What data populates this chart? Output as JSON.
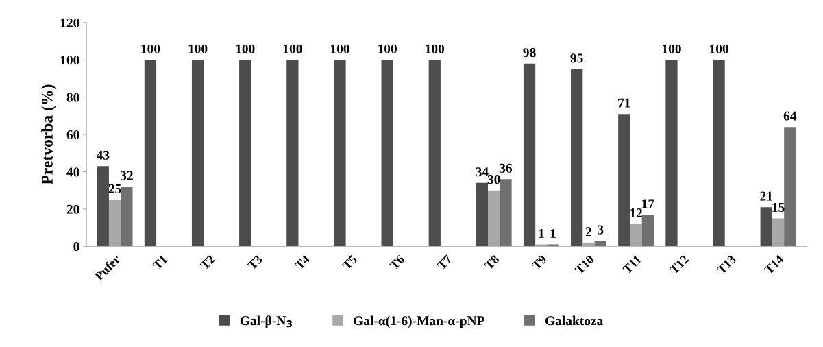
{
  "chart_data": {
    "type": "bar",
    "ylabel": "Pretvorba (%)",
    "categories": [
      "Pufer",
      "T1",
      "T2",
      "T3",
      "T4",
      "T5",
      "T6",
      "T7",
      "T8",
      "T9",
      "T10",
      "T11",
      "T12",
      "T13",
      "T14"
    ],
    "series": [
      {
        "name": "Gal-β-N$_{3}$",
        "color": "#4d4d4d",
        "values": [
          43,
          100,
          100,
          100,
          100,
          100,
          100,
          100,
          34,
          98,
          95,
          71,
          100,
          100,
          21
        ],
        "value_labels": [
          "43",
          "100",
          "100",
          "100",
          "100",
          "100",
          "100",
          "100",
          "34",
          "98",
          "95",
          "71",
          "100",
          "100",
          "21"
        ]
      },
      {
        "name": "Gal-α(1-6)-Man-α-pNP",
        "color": "#a8a8a8",
        "values": [
          25,
          null,
          null,
          null,
          null,
          null,
          null,
          null,
          30,
          1,
          2,
          12,
          null,
          null,
          15
        ],
        "value_labels": [
          "25",
          null,
          null,
          null,
          null,
          null,
          null,
          null,
          "30",
          "1",
          "2",
          "12",
          null,
          null,
          "15"
        ]
      },
      {
        "name": "Galaktoza",
        "color": "#707070",
        "values": [
          32,
          null,
          null,
          null,
          null,
          null,
          null,
          null,
          36,
          1,
          3,
          17,
          null,
          null,
          64
        ],
        "value_labels": [
          "32",
          null,
          null,
          null,
          null,
          null,
          null,
          null,
          "36",
          "1",
          "3",
          "17",
          null,
          null,
          "64"
        ]
      }
    ],
    "ylim": [
      0,
      120
    ],
    "yticks": [
      0,
      20,
      40,
      60,
      80,
      100,
      120
    ],
    "grid": false,
    "legend": "bottom"
  }
}
